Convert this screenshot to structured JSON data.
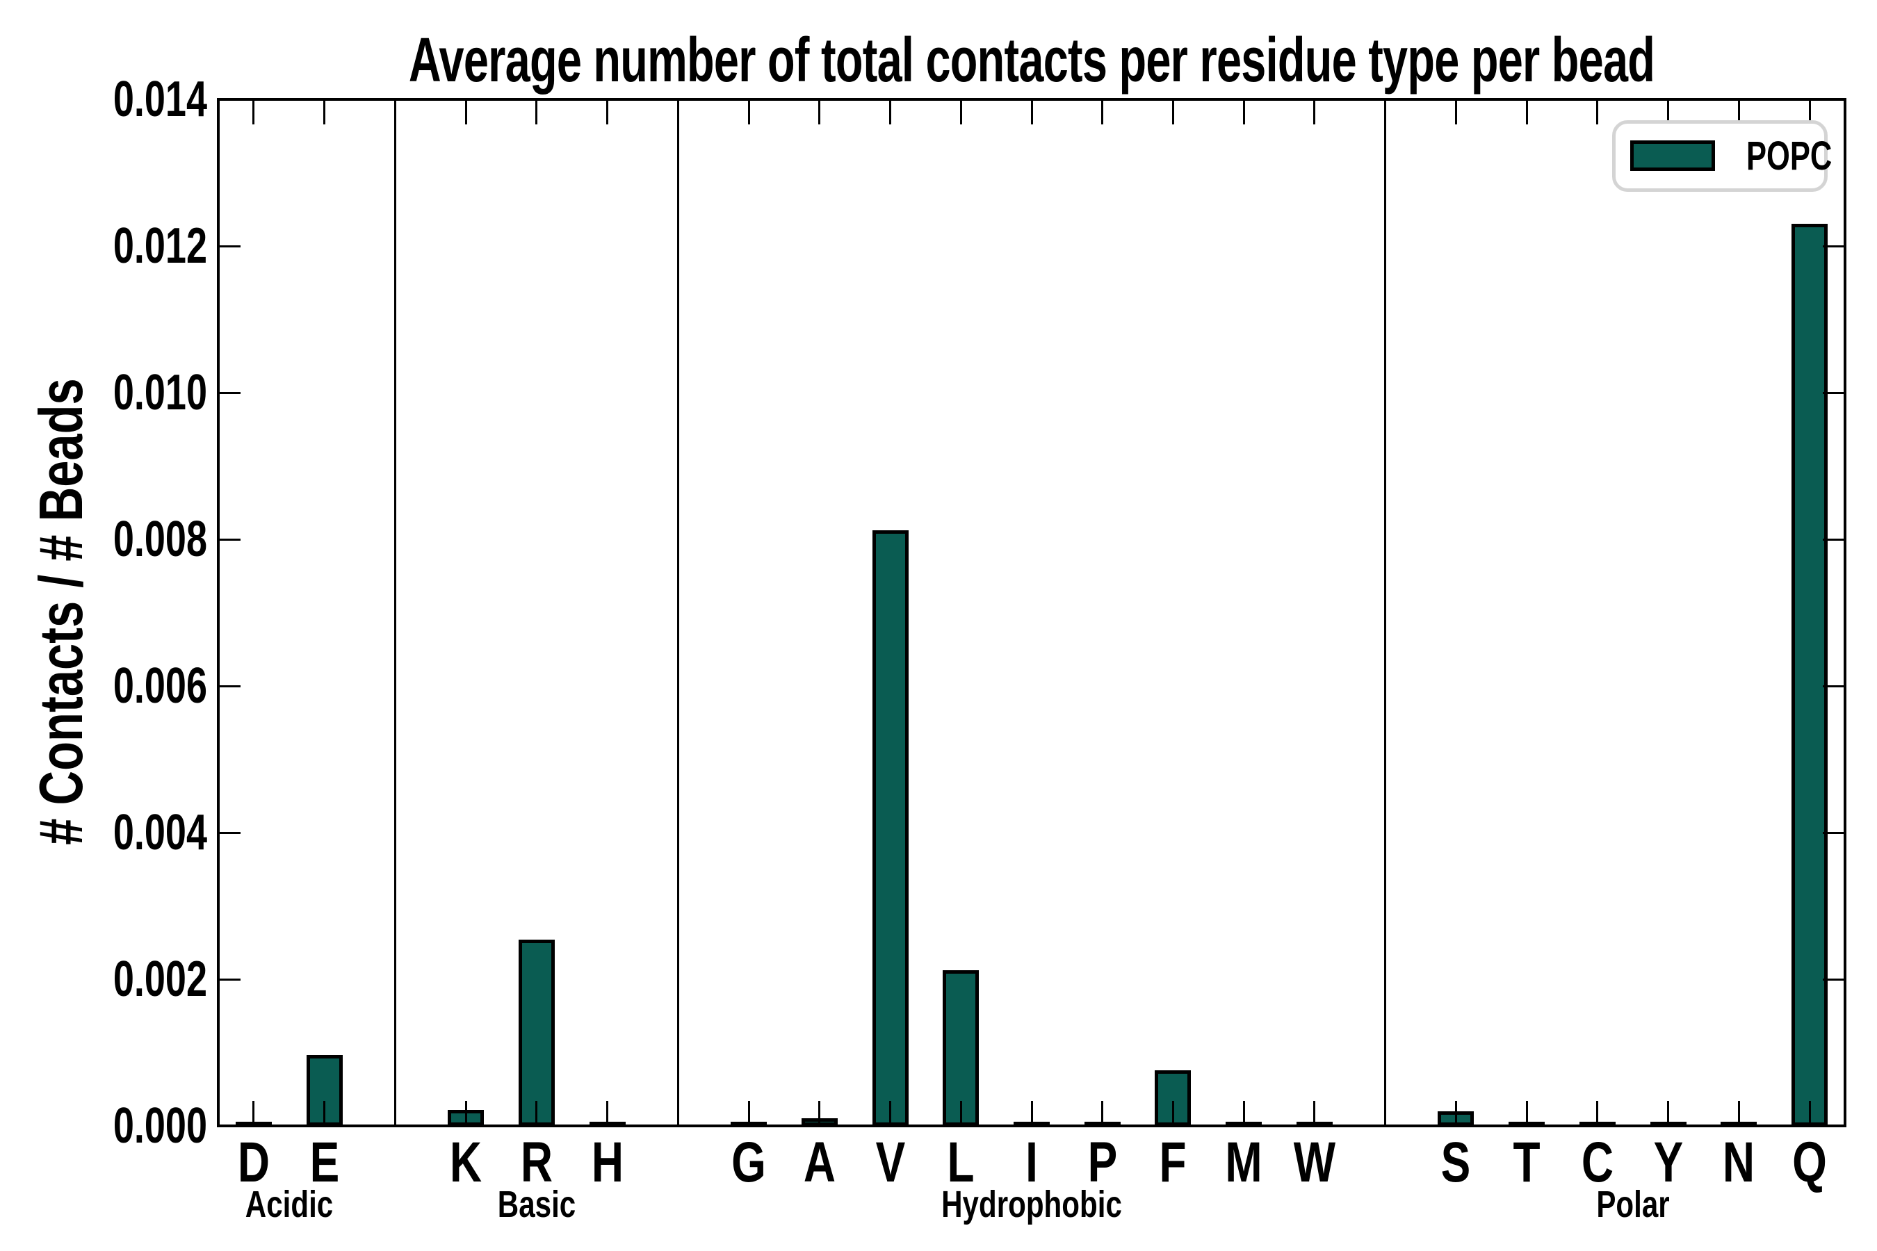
{
  "chart_data": {
    "type": "bar",
    "title": "Average number of total contacts per residue type per bead",
    "ylabel": "# Contacts / # Beads",
    "xlabel": "",
    "ylim": [
      0,
      0.014
    ],
    "ytick_step": 0.002,
    "ytick_decimals": 3,
    "grid": false,
    "legend": {
      "label": "POPC",
      "position": "upper right"
    },
    "bar_color": "#0a5c52",
    "bar_edge_color": "#000000",
    "groups": [
      {
        "label": "Acidic",
        "categories": [
          "D",
          "E"
        ],
        "values": [
          2e-05,
          0.00097
        ]
      },
      {
        "label": "Basic",
        "categories": [
          "K",
          "R",
          "H"
        ],
        "values": [
          0.00022,
          0.00254,
          2e-05
        ]
      },
      {
        "label": "Hydrophobic",
        "categories": [
          "G",
          "A",
          "V",
          "L",
          "I",
          "P",
          "F",
          "M",
          "W"
        ],
        "values": [
          2e-05,
          0.0001,
          0.00812,
          0.00212,
          2e-05,
          2e-05,
          0.00076,
          2e-05,
          2e-05
        ]
      },
      {
        "label": "Polar",
        "categories": [
          "S",
          "T",
          "C",
          "Y",
          "N",
          "Q"
        ],
        "values": [
          0.0002,
          2e-05,
          2e-05,
          2e-05,
          2e-05,
          0.0123
        ]
      }
    ]
  }
}
